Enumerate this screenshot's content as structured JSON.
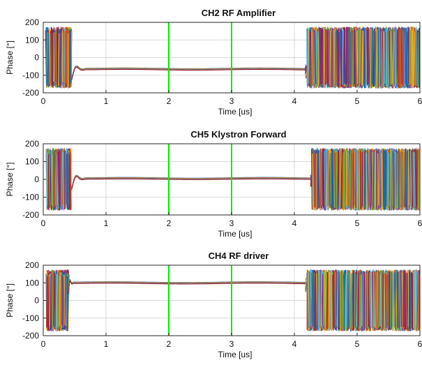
{
  "chart_data": [
    {
      "type": "line",
      "title": "CH2 RF Amplifier",
      "xlabel": "Time [us]",
      "ylabel": "Phase [°]",
      "xlim": [
        0,
        6
      ],
      "ylim": [
        -200,
        200
      ],
      "xticks": [
        "0",
        "1",
        "2",
        "3",
        "4",
        "5",
        "6"
      ],
      "yticks": [
        "-200",
        "-100",
        "0",
        "100",
        "200"
      ],
      "grid": true,
      "markers": [
        2,
        3
      ],
      "marker_color": "#00ee00",
      "phase_regions": {
        "noise_start": [
          0.05,
          0.45
        ],
        "settled_value": -65,
        "transient_end": 0.75,
        "noise_end_start": 4.2,
        "noise_amplitude": 175
      }
    },
    {
      "type": "line",
      "title": "CH5 Klystron Forward",
      "xlabel": "Time [us]",
      "ylabel": "Phase [°]",
      "xlim": [
        0,
        6
      ],
      "ylim": [
        -200,
        200
      ],
      "xticks": [
        "0",
        "1",
        "2",
        "3",
        "4",
        "5",
        "6"
      ],
      "yticks": [
        "-200",
        "-100",
        "0",
        "100",
        "200"
      ],
      "grid": true,
      "markers": [
        2,
        3
      ],
      "marker_color": "#00ee00",
      "phase_regions": {
        "noise_start": [
          0.05,
          0.45
        ],
        "settled_value": 5,
        "transient_end": 0.75,
        "noise_end_start": 4.28,
        "noise_amplitude": 175
      }
    },
    {
      "type": "line",
      "title": "CH4 RF driver",
      "xlabel": "Time [us]",
      "ylabel": "Phase [°]",
      "xlim": [
        0,
        6
      ],
      "ylim": [
        -200,
        200
      ],
      "xticks": [
        "0",
        "1",
        "2",
        "3",
        "4",
        "5",
        "6"
      ],
      "yticks": [
        "-200",
        "-100",
        "0",
        "100",
        "200"
      ],
      "grid": true,
      "markers": [
        2,
        3
      ],
      "marker_color": "#00ee00",
      "phase_regions": {
        "noise_start": [
          0.05,
          0.4
        ],
        "settled_value": 100,
        "transient_end": 0.5,
        "noise_end_start": 4.2,
        "noise_amplitude": 175
      }
    }
  ],
  "colors": [
    "#0072bd",
    "#d95319",
    "#edb120",
    "#7e2f8e",
    "#77ac30",
    "#4dbeee",
    "#a2142f"
  ]
}
